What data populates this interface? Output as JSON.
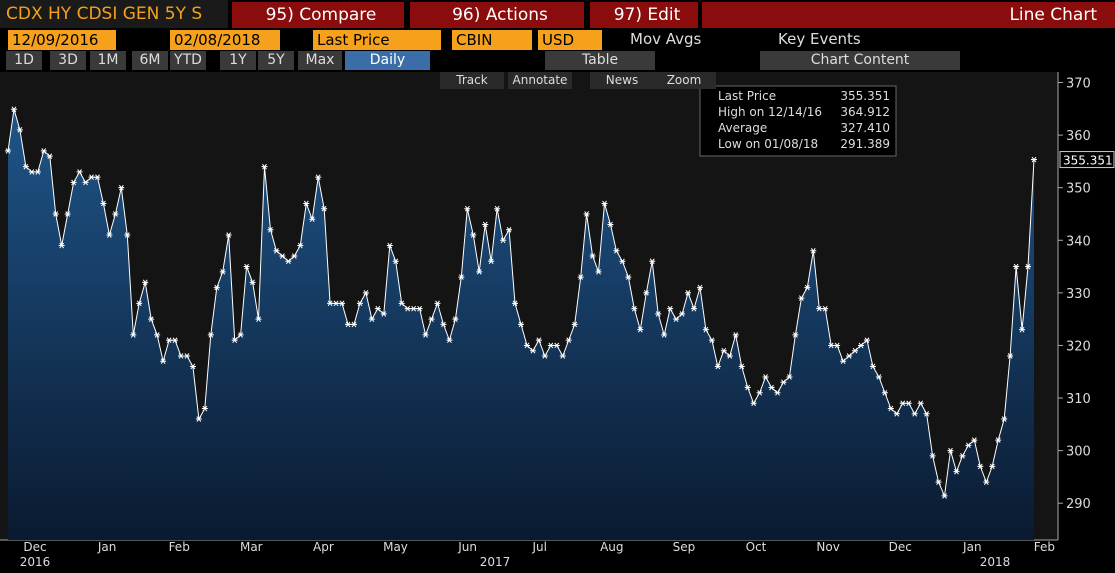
{
  "toolbar": {
    "security": "CDX HY CDSI GEN 5Y S",
    "compare": "95) Compare",
    "actions": "96) Actions",
    "edit": "97) Edit",
    "chart_type": "Line Chart",
    "start_date": "12/09/2016",
    "end_date": "02/08/2018",
    "field": "Last Price",
    "source": "CBIN",
    "currency": "USD",
    "mov_avgs": "Mov Avgs",
    "key_events": "Key Events",
    "ranges": [
      "1D",
      "3D",
      "1M",
      "6M",
      "YTD",
      "1Y",
      "5Y",
      "Max"
    ],
    "frequency": "Daily",
    "table": "Table",
    "chart_content": "Chart Content",
    "tools": [
      "Track",
      "Annotate",
      "News",
      "Zoom"
    ]
  },
  "chart_data": {
    "type": "line",
    "color": "#ffffff",
    "grid": false,
    "legend": [
      {
        "label": "Last Price",
        "value": "355.351"
      },
      {
        "label": "High on 12/14/16",
        "value": "364.912"
      },
      {
        "label": "Average",
        "value": "327.410"
      },
      {
        "label": "Low on 01/08/18",
        "value": "291.389"
      }
    ],
    "months": [
      "Dec",
      "Jan",
      "Feb",
      "Mar",
      "Apr",
      "May",
      "Jun",
      "Jul",
      "Aug",
      "Sep",
      "Oct",
      "Nov",
      "Dec",
      "Jan",
      "Feb"
    ],
    "years": [
      "2016",
      "2017",
      "2018"
    ],
    "ylim": [
      283,
      372
    ],
    "yticks": [
      290,
      300,
      310,
      320,
      330,
      340,
      350,
      360,
      370
    ],
    "values": [
      357,
      364.912,
      361,
      354,
      353,
      353,
      357,
      356,
      345,
      339,
      345,
      351,
      353,
      351,
      352,
      352,
      347,
      341,
      345,
      350,
      341,
      322,
      328,
      332,
      325,
      322,
      317,
      321,
      321,
      318,
      318,
      316,
      306,
      308,
      322,
      331,
      334,
      341,
      321,
      322,
      335,
      332,
      325,
      354,
      342,
      338,
      337,
      336,
      337,
      339,
      347,
      344,
      352,
      346,
      328,
      328,
      328,
      324,
      324,
      328,
      330,
      325,
      327,
      326,
      339,
      336,
      328,
      327,
      327,
      327,
      322,
      325,
      328,
      324,
      321,
      325,
      333,
      346,
      341,
      334,
      343,
      336,
      346,
      340,
      342,
      328,
      324,
      320,
      319,
      321,
      318,
      320,
      320,
      318,
      321,
      324,
      333,
      345,
      337,
      334,
      347,
      343,
      338,
      336,
      333,
      327,
      323,
      330,
      336,
      326,
      322,
      327,
      325,
      326,
      330,
      327,
      331,
      323,
      321,
      316,
      319,
      318,
      322,
      316,
      312,
      309,
      311,
      314,
      312,
      311,
      313,
      314,
      322,
      329,
      331,
      338,
      327,
      327,
      320,
      320,
      317,
      318,
      319,
      320,
      321,
      316,
      314,
      311,
      308,
      307,
      309,
      309,
      307,
      309,
      307,
      299,
      294,
      291.389,
      300,
      296,
      299,
      301,
      302,
      297,
      294,
      297,
      302,
      306,
      318,
      335,
      323,
      335,
      355.351
    ]
  }
}
